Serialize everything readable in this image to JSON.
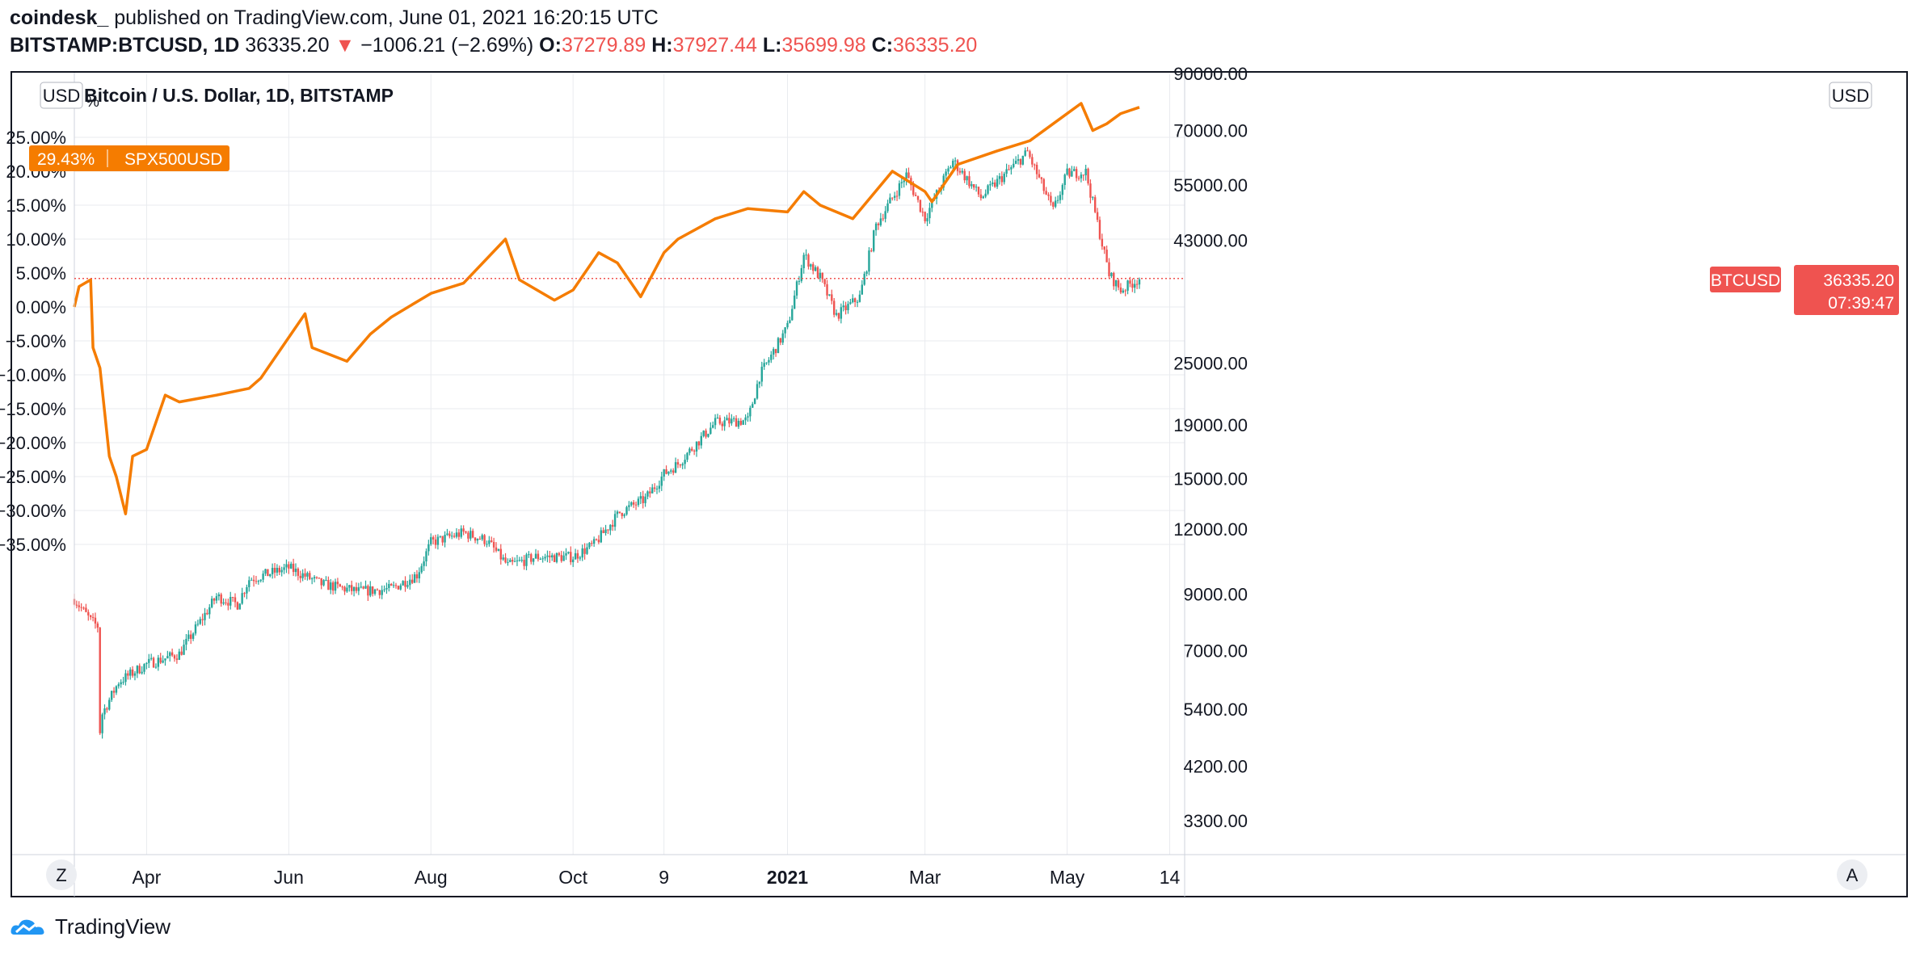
{
  "header": {
    "publisher": "coindesk_",
    "published_text": " published on TradingView.com, June 01, 2021 16:20:15 UTC",
    "symbol": "BITSTAMP:BTCUSD, 1D",
    "last_price": "36335.20",
    "change": "−1006.21 (−2.69%)",
    "o_label": "O:",
    "o_value": "37279.89",
    "h_label": "H:",
    "h_value": "37927.44",
    "l_label": "L:",
    "l_value": "35699.98",
    "c_label": "C:",
    "c_value": "36335.20"
  },
  "chart_title": "Bitcoin / U.S. Dollar, 1D, BITSTAMP",
  "left_scale": {
    "currency_button": "USD",
    "percent_sign": "%",
    "ticks": [
      "25.00%",
      "20.00%",
      "15.00%",
      "10.00%",
      "5.00%",
      "0.00%",
      "−5.00%",
      "−10.00%",
      "−15.00%",
      "−20.00%",
      "−25.00%",
      "−30.00%",
      "−35.00%"
    ],
    "spx_badge_value": "29.43%",
    "spx_badge_name": "SPX500USD"
  },
  "right_scale": {
    "currency_button": "USD",
    "ticks": [
      "90000.00",
      "70000.00",
      "55000.00",
      "43000.00",
      "25000.00",
      "19000.00",
      "15000.00",
      "12000.00",
      "9000.00",
      "7000.00",
      "5400.00",
      "4200.00",
      "3300.00"
    ],
    "btc_badge_name": "BTCUSD",
    "btc_badge_price": "36335.20",
    "btc_badge_countdown": "07:39:47"
  },
  "x_axis": {
    "ticks": [
      "Apr",
      "Jun",
      "Aug",
      "Oct",
      "9",
      "2021",
      "Mar",
      "May",
      "14"
    ],
    "bold_tick": "2021"
  },
  "corner_buttons": {
    "left": "Z",
    "right": "A"
  },
  "footer": {
    "brand": "TradingView"
  },
  "colors": {
    "up": "#26a69a",
    "down": "#ef5350",
    "spx_line": "#f57c00",
    "badge_spx": "#f57c00",
    "badge_btc": "#ef5350",
    "grid": "#e9ebef"
  },
  "chart_data": {
    "type": "line",
    "title": "Bitcoin / U.S. Dollar, 1D, BITSTAMP",
    "x_ticks": [
      "Apr",
      "Jun",
      "Aug",
      "Oct",
      "9",
      "2021",
      "Mar",
      "May",
      "14"
    ],
    "right_axis": {
      "scale": "log",
      "unit": "USD",
      "range": [
        3000,
        90000
      ]
    },
    "left_axis": {
      "unit": "% change",
      "range": [
        -38,
        35
      ]
    },
    "series": [
      {
        "name": "BTCUSD",
        "style": "candles",
        "axis": "right",
        "dates": [
          "2020-03-01",
          "2020-03-08",
          "2020-03-11",
          "2020-03-12",
          "2020-03-13",
          "2020-03-20",
          "2020-04-01",
          "2020-04-15",
          "2020-05-01",
          "2020-05-10",
          "2020-05-15",
          "2020-06-01",
          "2020-06-15",
          "2020-07-01",
          "2020-07-15",
          "2020-07-26",
          "2020-08-01",
          "2020-08-15",
          "2020-08-25",
          "2020-09-03",
          "2020-09-15",
          "2020-10-01",
          "2020-10-10",
          "2020-10-21",
          "2020-11-01",
          "2020-11-09",
          "2020-11-15",
          "2020-12-01",
          "2020-12-15",
          "2020-12-20",
          "2021-01-01",
          "2021-01-08",
          "2021-01-15",
          "2021-01-22",
          "2021-02-01",
          "2021-02-08",
          "2021-02-21",
          "2021-03-01",
          "2021-03-13",
          "2021-03-25",
          "2021-04-14",
          "2021-04-25",
          "2021-05-01",
          "2021-05-09",
          "2021-05-19",
          "2021-05-24",
          "2021-06-01"
        ],
        "values": [
          8800,
          8000,
          7800,
          4900,
          5300,
          6100,
          6600,
          6900,
          8900,
          8600,
          9600,
          10100,
          9400,
          9100,
          9200,
          9800,
          11300,
          11800,
          11400,
          10200,
          10600,
          10600,
          11200,
          12900,
          13700,
          15300,
          16000,
          19200,
          19400,
          23600,
          29300,
          40300,
          36500,
          30800,
          33500,
          46000,
          57500,
          47500,
          61200,
          52000,
          63500,
          49000,
          57800,
          58200,
          37000,
          34500,
          36335
        ]
      },
      {
        "name": "SPX500USD",
        "style": "line",
        "axis": "left",
        "dates": [
          "2020-03-01",
          "2020-03-03",
          "2020-03-08",
          "2020-03-09",
          "2020-03-12",
          "2020-03-16",
          "2020-03-19",
          "2020-03-23",
          "2020-03-26",
          "2020-04-01",
          "2020-04-09",
          "2020-04-15",
          "2020-05-01",
          "2020-05-15",
          "2020-05-20",
          "2020-06-08",
          "2020-06-11",
          "2020-06-26",
          "2020-07-06",
          "2020-07-15",
          "2020-08-01",
          "2020-08-15",
          "2020-09-02",
          "2020-09-08",
          "2020-09-23",
          "2020-10-01",
          "2020-10-12",
          "2020-10-20",
          "2020-10-30",
          "2020-11-09",
          "2020-11-15",
          "2020-12-01",
          "2020-12-15",
          "2021-01-01",
          "2021-01-08",
          "2021-01-15",
          "2021-01-29",
          "2021-02-15",
          "2021-03-01",
          "2021-03-04",
          "2021-03-15",
          "2021-04-01",
          "2021-04-15",
          "2021-04-29",
          "2021-05-07",
          "2021-05-12",
          "2021-05-18",
          "2021-05-24",
          "2021-06-01"
        ],
        "values": [
          0.0,
          3.0,
          4.0,
          -6.0,
          -9.0,
          -22.0,
          -25.0,
          -30.5,
          -22.0,
          -21.0,
          -13.0,
          -14.0,
          -13.0,
          -12.0,
          -10.5,
          -1.0,
          -6.0,
          -8.0,
          -4.0,
          -1.5,
          2.0,
          3.5,
          10.0,
          4.0,
          1.0,
          2.5,
          8.0,
          6.5,
          1.5,
          8.0,
          10.0,
          13.0,
          14.5,
          14.0,
          17.0,
          15.0,
          13.0,
          20.0,
          17.0,
          15.5,
          21.0,
          23.0,
          24.5,
          28.0,
          30.0,
          26.0,
          27.0,
          28.5,
          29.43
        ]
      }
    ]
  }
}
